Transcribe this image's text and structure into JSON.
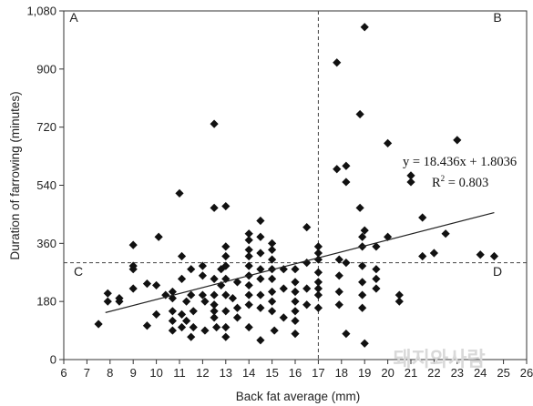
{
  "chart_data": {
    "type": "scatter",
    "title": "",
    "xlabel": "Back fat average (mm)",
    "ylabel": "Duration of farrowing (minutes)",
    "xlim": [
      6,
      26
    ],
    "ylim": [
      0,
      1080
    ],
    "x_ticks": [
      6,
      7,
      8,
      9,
      10,
      11,
      12,
      13,
      14,
      15,
      16,
      17,
      18,
      19,
      20,
      21,
      22,
      23,
      24,
      25,
      26
    ],
    "y_ticks": [
      0,
      180,
      360,
      540,
      720,
      900,
      1080
    ],
    "y_tick_labels": [
      "0",
      "180",
      "360",
      "540",
      "720",
      "900",
      "1,080"
    ],
    "grid": false,
    "regression": {
      "slope": 18.436,
      "intercept": 1.8036,
      "x_from": 7.8,
      "x_to": 24.6
    },
    "annotations": {
      "equation": "y = 18.436x + 1.8036",
      "r2_prefix": "R",
      "r2_sup": "2",
      "r2_value": " = 0.803"
    },
    "reference_lines": {
      "x": 17,
      "y": 300
    },
    "quadrant_labels": [
      "A",
      "B",
      "C",
      "D"
    ],
    "points": [
      [
        7.5,
        110
      ],
      [
        7.9,
        180
      ],
      [
        7.9,
        205
      ],
      [
        8.4,
        180
      ],
      [
        8.4,
        190
      ],
      [
        9.0,
        220
      ],
      [
        9.0,
        280
      ],
      [
        9.0,
        290
      ],
      [
        9.0,
        355
      ],
      [
        9.6,
        105
      ],
      [
        9.6,
        235
      ],
      [
        10.0,
        140
      ],
      [
        10.0,
        230
      ],
      [
        10.1,
        380
      ],
      [
        10.4,
        200
      ],
      [
        10.7,
        190
      ],
      [
        10.7,
        210
      ],
      [
        10.7,
        150
      ],
      [
        10.7,
        90
      ],
      [
        10.7,
        120
      ],
      [
        11.0,
        515
      ],
      [
        11.1,
        320
      ],
      [
        11.1,
        250
      ],
      [
        11.1,
        140
      ],
      [
        11.1,
        100
      ],
      [
        11.3,
        180
      ],
      [
        11.3,
        120
      ],
      [
        11.5,
        200
      ],
      [
        11.5,
        280
      ],
      [
        11.5,
        70
      ],
      [
        11.6,
        100
      ],
      [
        11.6,
        150
      ],
      [
        12.0,
        200
      ],
      [
        12.0,
        260
      ],
      [
        12.0,
        290
      ],
      [
        12.1,
        90
      ],
      [
        12.1,
        180
      ],
      [
        12.5,
        730
      ],
      [
        12.5,
        470
      ],
      [
        12.5,
        250
      ],
      [
        12.5,
        200
      ],
      [
        12.5,
        170
      ],
      [
        12.5,
        150
      ],
      [
        12.5,
        130
      ],
      [
        12.6,
        100
      ],
      [
        12.8,
        230
      ],
      [
        12.8,
        280
      ],
      [
        13.0,
        475
      ],
      [
        13.0,
        350
      ],
      [
        13.0,
        320
      ],
      [
        13.0,
        290
      ],
      [
        13.0,
        250
      ],
      [
        13.0,
        200
      ],
      [
        13.0,
        150
      ],
      [
        13.0,
        100
      ],
      [
        13.0,
        70
      ],
      [
        13.3,
        190
      ],
      [
        13.5,
        240
      ],
      [
        13.5,
        160
      ],
      [
        13.5,
        130
      ],
      [
        14.0,
        390
      ],
      [
        14.0,
        370
      ],
      [
        14.0,
        340
      ],
      [
        14.0,
        320
      ],
      [
        14.0,
        290
      ],
      [
        14.0,
        260
      ],
      [
        14.0,
        230
      ],
      [
        14.0,
        200
      ],
      [
        14.0,
        170
      ],
      [
        14.0,
        100
      ],
      [
        14.5,
        430
      ],
      [
        14.5,
        380
      ],
      [
        14.5,
        330
      ],
      [
        14.5,
        280
      ],
      [
        14.5,
        250
      ],
      [
        14.5,
        200
      ],
      [
        14.5,
        160
      ],
      [
        14.5,
        60
      ],
      [
        15.0,
        360
      ],
      [
        15.0,
        340
      ],
      [
        15.0,
        310
      ],
      [
        15.0,
        280
      ],
      [
        15.0,
        250
      ],
      [
        15.0,
        210
      ],
      [
        15.0,
        180
      ],
      [
        15.0,
        150
      ],
      [
        15.1,
        90
      ],
      [
        15.5,
        280
      ],
      [
        15.5,
        220
      ],
      [
        15.5,
        130
      ],
      [
        16.0,
        280
      ],
      [
        16.0,
        240
      ],
      [
        16.0,
        210
      ],
      [
        16.0,
        180
      ],
      [
        16.0,
        150
      ],
      [
        16.0,
        120
      ],
      [
        16.0,
        80
      ],
      [
        16.5,
        300
      ],
      [
        16.5,
        410
      ],
      [
        16.5,
        220
      ],
      [
        16.5,
        170
      ],
      [
        17.0,
        350
      ],
      [
        17.0,
        330
      ],
      [
        17.0,
        310
      ],
      [
        17.0,
        270
      ],
      [
        17.0,
        240
      ],
      [
        17.0,
        220
      ],
      [
        17.0,
        200
      ],
      [
        17.0,
        160
      ],
      [
        17.8,
        920
      ],
      [
        17.8,
        590
      ],
      [
        17.9,
        310
      ],
      [
        17.9,
        260
      ],
      [
        17.9,
        210
      ],
      [
        17.9,
        170
      ],
      [
        18.2,
        600
      ],
      [
        18.2,
        550
      ],
      [
        18.2,
        300
      ],
      [
        18.2,
        80
      ],
      [
        18.8,
        760
      ],
      [
        18.8,
        470
      ],
      [
        18.9,
        380
      ],
      [
        18.9,
        350
      ],
      [
        18.9,
        290
      ],
      [
        18.9,
        240
      ],
      [
        18.9,
        200
      ],
      [
        18.9,
        160
      ],
      [
        19.0,
        1030
      ],
      [
        19.0,
        400
      ],
      [
        19.0,
        50
      ],
      [
        19.5,
        350
      ],
      [
        19.5,
        280
      ],
      [
        19.5,
        250
      ],
      [
        19.5,
        220
      ],
      [
        20.0,
        670
      ],
      [
        20.0,
        380
      ],
      [
        20.5,
        200
      ],
      [
        20.5,
        180
      ],
      [
        21.0,
        570
      ],
      [
        21.0,
        550
      ],
      [
        21.5,
        440
      ],
      [
        21.5,
        320
      ],
      [
        22.0,
        330
      ],
      [
        22.5,
        390
      ],
      [
        23.0,
        680
      ],
      [
        24.0,
        325
      ],
      [
        24.6,
        320
      ]
    ],
    "colors": {
      "marker": "#111111",
      "axis": "#333333",
      "line": "#222222",
      "watermark": "#d9d9d9"
    }
  },
  "watermark_text": "돼지와사람"
}
